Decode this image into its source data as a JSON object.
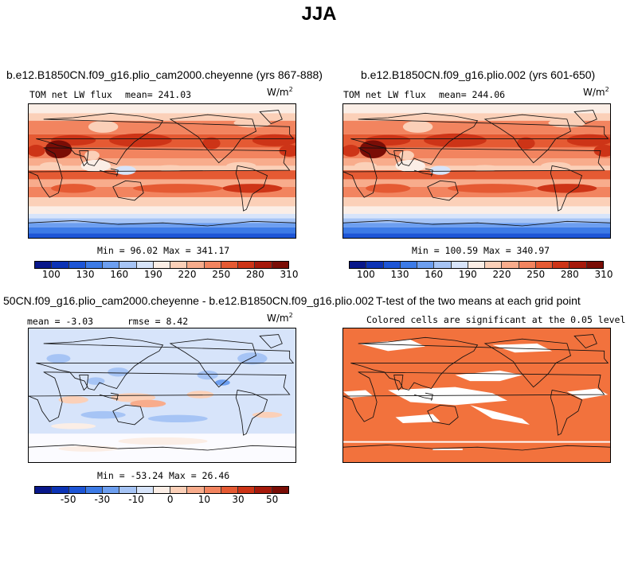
{
  "figure": {
    "title": "JJA"
  },
  "panels": [
    {
      "title": "b.e12.B1850CN.f09_g16.plio_cam2000.cheyenne (yrs 867-888)",
      "variable_label": "TOM net LW flux",
      "mean_text": "mean= 241.03",
      "units_base": "W/m",
      "units_exp": "2",
      "minmax_text": "Min =  96.02 Max = 341.17"
    },
    {
      "title": "b.e12.B1850CN.f09_g16.plio.002 (yrs 601-650)",
      "variable_label": "TOM net LW flux",
      "mean_text": "mean= 244.06",
      "units_base": "W/m",
      "units_exp": "2",
      "minmax_text": "Min = 100.59 Max = 340.97"
    },
    {
      "title": "50CN.f09_g16.plio_cam2000.cheyenne - b.e12.B1850CN.f09_g16.plio.002",
      "mean_text": "mean =  -3.03",
      "rmse_text": "rmse =   8.42",
      "units_base": "W/m",
      "units_exp": "2",
      "minmax_text": "Min = -53.24 Max =  26.46"
    },
    {
      "title": "T-test of the two means at each grid point",
      "subtitle": "Colored cells are significant at the 0.05 level",
      "fill_color": "#f2723d"
    }
  ],
  "colorbars": {
    "abs": {
      "colors": [
        "#08178a",
        "#0c33b5",
        "#1d55d6",
        "#3d7be6",
        "#6d9ff0",
        "#a6c4f5",
        "#d7e4fa",
        "#fbeee6",
        "#fbd0b8",
        "#f8ac8c",
        "#f2845f",
        "#e55a33",
        "#cd3417",
        "#a6190b",
        "#7a0d06"
      ],
      "labels": [
        "100",
        "130",
        "160",
        "190",
        "220",
        "250",
        "280",
        "310"
      ]
    },
    "diff": {
      "colors": [
        "#08178a",
        "#0c33b5",
        "#1d55d6",
        "#3d7be6",
        "#6d9ff0",
        "#a6c4f5",
        "#d7e4fa",
        "#fbeee6",
        "#fbd0b8",
        "#f8ac8c",
        "#f2845f",
        "#e55a33",
        "#cd3417",
        "#a6190b",
        "#7a0d06"
      ],
      "labels": [
        "-50",
        "-30",
        "-10",
        "0",
        "10",
        "30",
        "50"
      ]
    }
  }
}
